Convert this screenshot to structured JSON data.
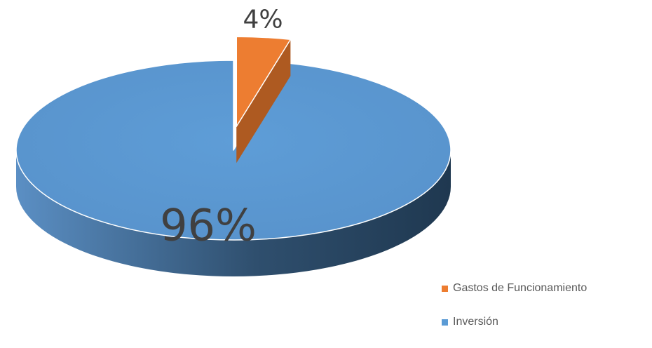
{
  "chart_data": {
    "type": "pie",
    "style": "3d-exploded",
    "categories": [
      "Gastos de Funcionamiento",
      "Inversión"
    ],
    "values": [
      4,
      96
    ],
    "labels": [
      "4%",
      "96%"
    ],
    "colors": [
      "#ED7D31",
      "#5B9BD5"
    ],
    "side_colors": [
      "#AE5A21",
      "#41719C"
    ],
    "legend_position": "bottom-right",
    "title": ""
  }
}
